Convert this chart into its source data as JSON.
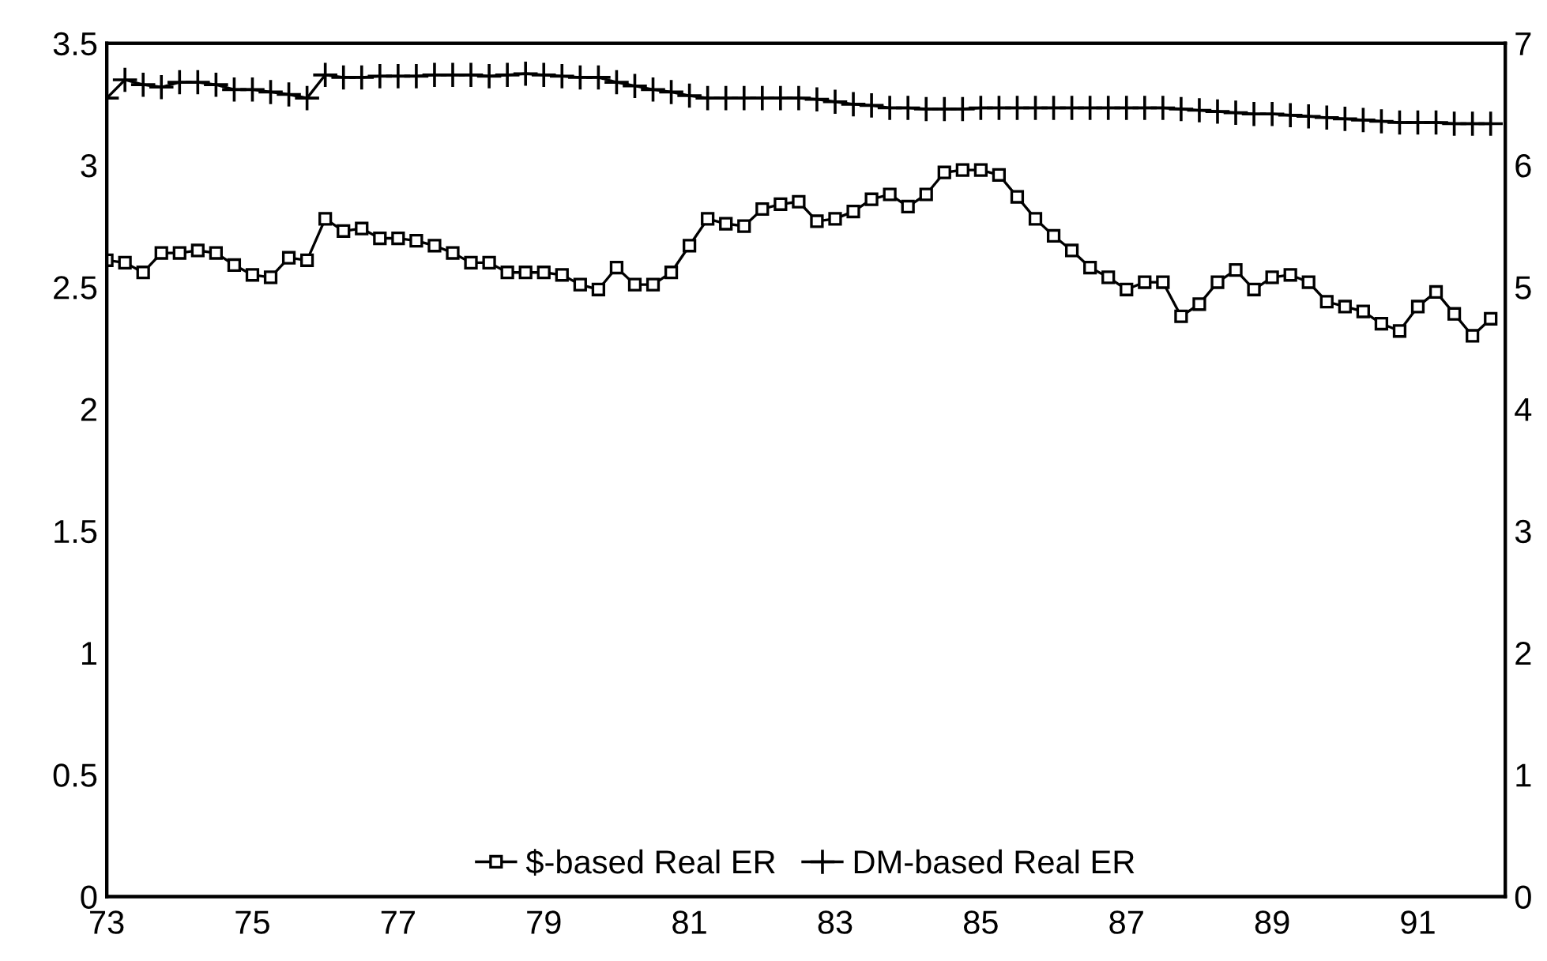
{
  "chart_data": {
    "type": "line",
    "xlim": [
      73,
      92.2
    ],
    "xticks": [
      73,
      75,
      77,
      79,
      81,
      83,
      85,
      87,
      89,
      91
    ],
    "ylim": [
      0,
      3.5
    ],
    "yticks": [
      0,
      0.5,
      1,
      1.5,
      2,
      2.5,
      3,
      3.5
    ],
    "y2lim": [
      0,
      7
    ],
    "y2ticks": [
      0,
      1,
      2,
      3,
      4,
      5,
      6,
      7
    ],
    "grid": false,
    "legend": "bottom",
    "series": [
      {
        "name": "$-based Real ER",
        "color": "#000000",
        "marker": "square",
        "x": [
          73,
          73.25,
          73.5,
          73.75,
          74,
          74.25,
          74.5,
          74.75,
          75,
          75.25,
          75.5,
          75.75,
          76,
          76.25,
          76.5,
          76.75,
          77,
          77.25,
          77.5,
          77.75,
          78,
          78.25,
          78.5,
          78.75,
          79,
          79.25,
          79.5,
          79.75,
          80,
          80.25,
          80.5,
          80.75,
          81,
          81.25,
          81.5,
          81.75,
          82,
          82.25,
          82.5,
          82.75,
          83,
          83.25,
          83.5,
          83.75,
          84,
          84.25,
          84.5,
          84.75,
          85,
          85.25,
          85.5,
          85.75,
          86,
          86.25,
          86.5,
          86.75,
          87,
          87.25,
          87.5,
          87.75,
          88,
          88.25,
          88.5,
          88.75,
          89,
          89.25,
          89.5,
          89.75,
          90,
          90.25,
          90.5,
          90.75,
          91,
          91.25,
          91.5,
          91.75,
          92
        ],
        "values": [
          2.61,
          2.6,
          2.56,
          2.64,
          2.64,
          2.65,
          2.64,
          2.59,
          2.55,
          2.54,
          2.62,
          2.61,
          2.78,
          2.73,
          2.74,
          2.7,
          2.7,
          2.69,
          2.67,
          2.64,
          2.6,
          2.6,
          2.56,
          2.56,
          2.56,
          2.55,
          2.51,
          2.49,
          2.58,
          2.51,
          2.51,
          2.56,
          2.67,
          2.78,
          2.76,
          2.75,
          2.82,
          2.84,
          2.85,
          2.77,
          2.78,
          2.81,
          2.86,
          2.88,
          2.83,
          2.88,
          2.97,
          2.98,
          2.98,
          2.96,
          2.87,
          2.78,
          2.71,
          2.65,
          2.58,
          2.54,
          2.49,
          2.52,
          2.52,
          2.38,
          2.43,
          2.52,
          2.57,
          2.49,
          2.54,
          2.55,
          2.52,
          2.44,
          2.42,
          2.4,
          2.35,
          2.32,
          2.42,
          2.48,
          2.39,
          2.3,
          2.37
        ]
      },
      {
        "name": "DM-based Real ER",
        "color": "#000000",
        "marker": "cross",
        "axis": "y2",
        "x": [
          73,
          73.25,
          73.5,
          73.75,
          74,
          74.25,
          74.5,
          74.75,
          75,
          75.25,
          75.5,
          75.75,
          76,
          76.25,
          76.5,
          76.75,
          77,
          77.25,
          77.5,
          77.75,
          78,
          78.25,
          78.5,
          78.75,
          79,
          79.25,
          79.5,
          79.75,
          80,
          80.25,
          80.5,
          80.75,
          81,
          81.25,
          81.5,
          81.75,
          82,
          82.25,
          82.5,
          82.75,
          83,
          83.25,
          83.5,
          83.75,
          84,
          84.25,
          84.5,
          84.75,
          85,
          85.25,
          85.5,
          85.75,
          86,
          86.25,
          86.5,
          86.75,
          87,
          87.25,
          87.5,
          87.75,
          88,
          88.25,
          88.5,
          88.75,
          89,
          89.25,
          89.5,
          89.75,
          90,
          90.25,
          90.5,
          90.75,
          91,
          91.25,
          91.5,
          91.75,
          92
        ],
        "values": [
          6.55,
          6.7,
          6.66,
          6.64,
          6.68,
          6.68,
          6.66,
          6.62,
          6.62,
          6.6,
          6.58,
          6.55,
          6.74,
          6.72,
          6.72,
          6.73,
          6.73,
          6.73,
          6.74,
          6.74,
          6.74,
          6.73,
          6.74,
          6.75,
          6.74,
          6.73,
          6.72,
          6.72,
          6.68,
          6.65,
          6.62,
          6.6,
          6.57,
          6.55,
          6.55,
          6.55,
          6.55,
          6.55,
          6.55,
          6.54,
          6.52,
          6.5,
          6.49,
          6.47,
          6.47,
          6.46,
          6.46,
          6.46,
          6.47,
          6.47,
          6.47,
          6.47,
          6.47,
          6.47,
          6.47,
          6.47,
          6.47,
          6.47,
          6.47,
          6.46,
          6.45,
          6.44,
          6.43,
          6.42,
          6.42,
          6.41,
          6.4,
          6.39,
          6.38,
          6.37,
          6.36,
          6.35,
          6.35,
          6.35,
          6.34,
          6.34,
          6.34
        ]
      }
    ]
  }
}
